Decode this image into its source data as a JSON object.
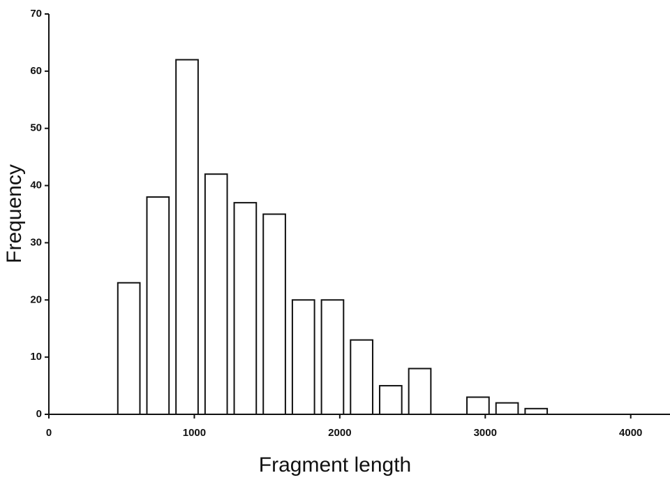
{
  "chart_data": {
    "type": "histogram",
    "x_label": "Fragment length",
    "y_label": "Frequency",
    "bins": [
      450,
      650,
      850,
      1050,
      1250,
      1450,
      1650,
      1850,
      2050,
      2250,
      2450,
      2650,
      2850,
      3050,
      3250,
      3450
    ],
    "values": [
      23,
      38,
      62,
      42,
      37,
      35,
      20,
      20,
      13,
      5,
      8,
      0,
      3,
      2,
      1
    ],
    "color": "#ffffff",
    "edge_color": "#111111",
    "xlim": [
      0,
      4270
    ],
    "xticks": [
      0,
      1000,
      2000,
      3000,
      4000
    ],
    "ylim": [
      0,
      70
    ],
    "yticks": [
      0,
      10,
      20,
      30,
      40,
      50,
      60,
      70
    ],
    "grid": false
  }
}
